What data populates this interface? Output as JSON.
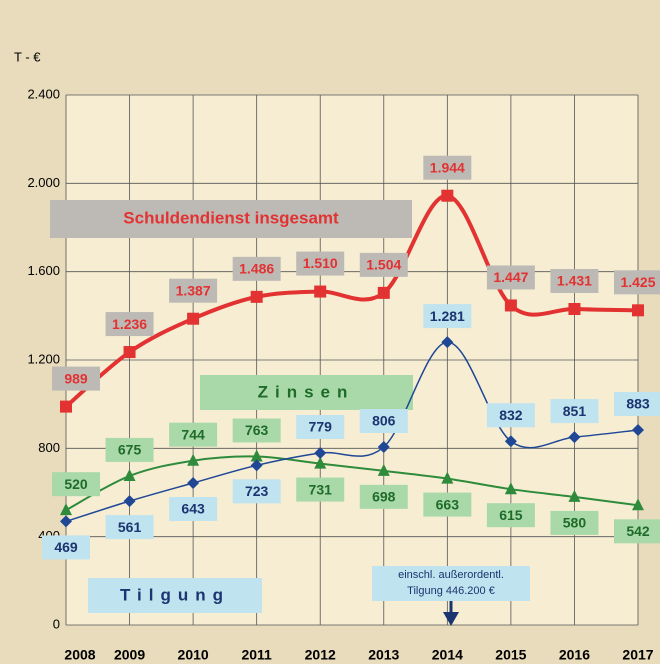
{
  "chart_data": {
    "type": "line",
    "unit_label": "T - €",
    "categories": [
      "2008",
      "2009",
      "2010",
      "2011",
      "2012",
      "2013",
      "2014",
      "2015",
      "2016",
      "2017"
    ],
    "series": [
      {
        "name": "Schuldendienst insgesamt",
        "color": "#e23232",
        "marker": "square",
        "values": [
          989,
          1236,
          1387,
          1486,
          1510,
          1504,
          1944,
          1447,
          1431,
          1425
        ],
        "value_labels": [
          "989",
          "1.236",
          "1.387",
          "1.486",
          "1.510",
          "1.504",
          "1.944",
          "1.447",
          "1.431",
          "1.425"
        ]
      },
      {
        "name": "Zinsen",
        "color": "#2e8b3c",
        "marker": "triangle",
        "values": [
          520,
          675,
          744,
          763,
          731,
          698,
          663,
          615,
          580,
          542
        ]
      },
      {
        "name": "Tilgung",
        "color": "#1f4796",
        "marker": "diamond",
        "values": [
          469,
          561,
          643,
          723,
          779,
          806,
          1281,
          832,
          851,
          883
        ],
        "value_labels": [
          "469",
          "561",
          "643",
          "723",
          "779",
          "806",
          "1.281",
          "832",
          "851",
          "883"
        ]
      }
    ],
    "annotation": [
      "einschl. außerordentl.",
      "Tilgung 446.200 €"
    ],
    "ylim": [
      0,
      2400
    ],
    "yticks": [
      0,
      400,
      800,
      {
        "value": 1200,
        "label": "1.200"
      },
      {
        "value": 1600,
        "label": "1.600"
      },
      {
        "value": 2000,
        "label": "2.000"
      },
      {
        "value": 2400,
        "label": "2.400"
      }
    ],
    "grid": true
  }
}
